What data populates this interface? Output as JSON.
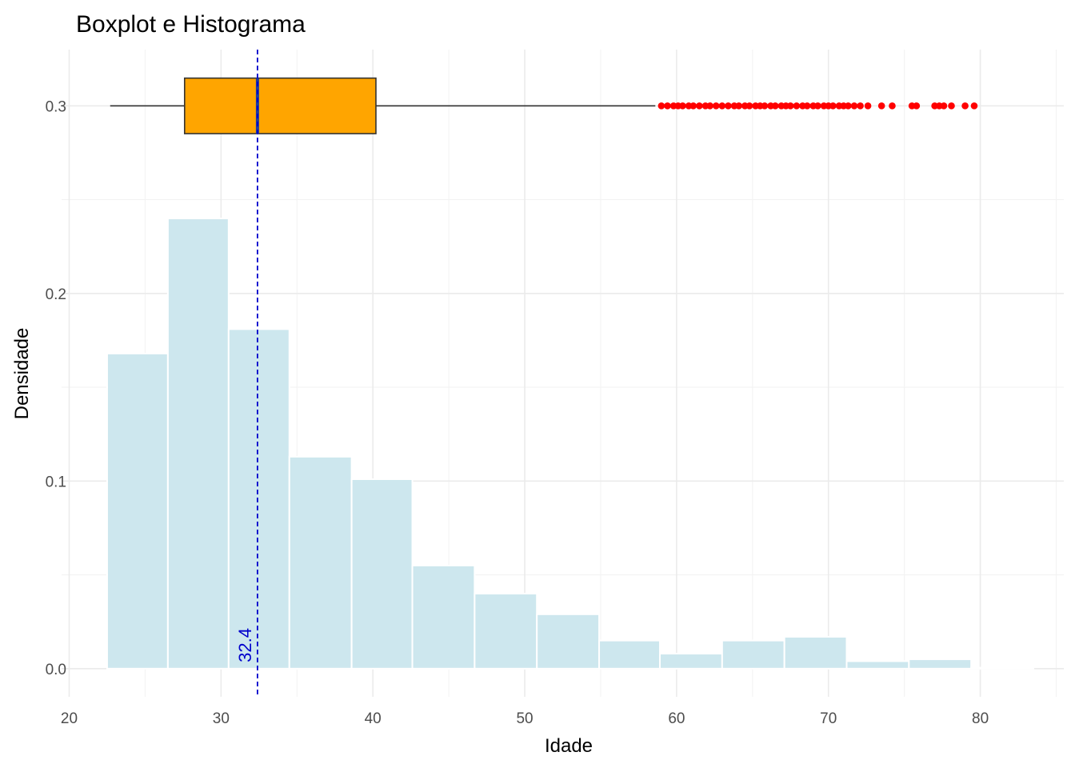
{
  "chart_data": {
    "type": "bar",
    "title": "Boxplot e Histograma",
    "xlabel": "Idade",
    "ylabel": "Densidade",
    "xlim": [
      19.5,
      85.5
    ],
    "ylim": [
      -0.015,
      0.33
    ],
    "x_ticks": [
      20,
      30,
      40,
      50,
      60,
      70,
      80
    ],
    "y_ticks": [
      0.0,
      0.1,
      0.2,
      0.3
    ],
    "y_tick_labels": [
      "0.0",
      "0.1",
      "0.2",
      "0.3"
    ],
    "grid": true,
    "histogram": {
      "fill": "#cde7ee",
      "bins": [
        {
          "x0": 22.5,
          "x1": 26.5,
          "density": 0.168
        },
        {
          "x0": 26.5,
          "x1": 30.5,
          "density": 0.24
        },
        {
          "x0": 30.5,
          "x1": 34.5,
          "density": 0.181
        },
        {
          "x0": 34.5,
          "x1": 38.6,
          "density": 0.113
        },
        {
          "x0": 38.6,
          "x1": 42.6,
          "density": 0.101
        },
        {
          "x0": 42.6,
          "x1": 46.7,
          "density": 0.055
        },
        {
          "x0": 46.7,
          "x1": 50.8,
          "density": 0.04
        },
        {
          "x0": 50.8,
          "x1": 54.9,
          "density": 0.029
        },
        {
          "x0": 54.9,
          "x1": 58.9,
          "density": 0.015
        },
        {
          "x0": 58.9,
          "x1": 63.0,
          "density": 0.008
        },
        {
          "x0": 63.0,
          "x1": 67.1,
          "density": 0.015
        },
        {
          "x0": 67.1,
          "x1": 71.2,
          "density": 0.017
        },
        {
          "x0": 71.2,
          "x1": 75.3,
          "density": 0.004
        },
        {
          "x0": 75.3,
          "x1": 79.4,
          "density": 0.005
        },
        {
          "x0": 79.4,
          "x1": 83.5,
          "density": 0.0005
        }
      ]
    },
    "boxplot": {
      "y": 0.3,
      "half_height": 0.0148,
      "whisker_low": 22.7,
      "q1": 27.6,
      "median": 32.4,
      "q3": 40.2,
      "whisker_high": 58.6,
      "fill": "#ffa500",
      "outline": "#333333",
      "median_color": "#1f3a9e",
      "outlier_color": "#ff0000",
      "outliers": [
        59.0,
        59.4,
        59.8,
        60.1,
        60.4,
        60.8,
        61.1,
        61.5,
        61.9,
        62.2,
        62.6,
        63.0,
        63.4,
        63.8,
        64.1,
        64.5,
        64.8,
        65.2,
        65.5,
        65.8,
        66.2,
        66.5,
        66.9,
        67.2,
        67.5,
        67.9,
        68.3,
        68.6,
        69.0,
        69.3,
        69.7,
        70.0,
        70.3,
        70.7,
        71.0,
        71.3,
        71.7,
        72.1,
        72.6,
        73.5,
        74.2,
        75.5,
        75.8,
        77.0,
        77.3,
        77.6,
        78.1,
        79.0,
        79.6
      ]
    },
    "median_line": {
      "x": 32.4,
      "color": "#0000cc",
      "label": "32.4"
    }
  }
}
